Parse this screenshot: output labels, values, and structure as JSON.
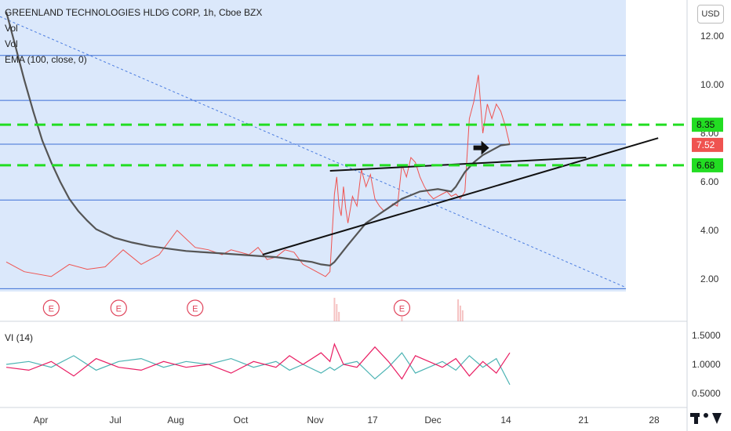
{
  "legend": {
    "title": "GREENLAND TECHNOLOGIES HLDG CORP, 1h, Cboe BZX",
    "vol1": "Vol",
    "vol2": "Vol",
    "ema": "EMA (100, close, 0)"
  },
  "vi_legend": "VI (14)",
  "currency_button": "USD",
  "colors": {
    "background_band": "#dbe8fb",
    "horizontal_line": "#3d6fd6",
    "dashed_level": "#22dd22",
    "price_line": "#ef5350",
    "ema_line": "#555555",
    "trend_line": "#111111",
    "diagonal_dotted": "#4a7ce0",
    "vi_plus": "#4bb3b3",
    "vi_minus": "#e91e63",
    "earnings_marker": "#e0455c"
  },
  "chart_data": {
    "type": "line",
    "price_axis": {
      "ticks": [
        "12.00",
        "10.00",
        "8.00",
        "6.00",
        "4.00",
        "2.00"
      ],
      "range": [
        0.5,
        13.2
      ]
    },
    "time_axis": {
      "ticks": [
        "Apr",
        "Jul",
        "Aug",
        "Oct",
        "Nov",
        "17",
        "Dec",
        "14",
        "21",
        "28"
      ]
    },
    "price_labels": [
      {
        "label": "8.35",
        "value": 8.35,
        "kind": "level"
      },
      {
        "label": "7.52",
        "value": 7.52,
        "kind": "last"
      },
      {
        "label": "6.68",
        "value": 6.68,
        "kind": "level"
      }
    ],
    "horizontal_levels": [
      11.2,
      9.35,
      7.55,
      5.25,
      1.6
    ],
    "dashed_levels": [
      8.35,
      6.68
    ],
    "series": [
      {
        "role": "close",
        "x": [
          0,
          4,
          10,
          14,
          18,
          22,
          26,
          30,
          34,
          38,
          42,
          45,
          48,
          50,
          52,
          54,
          56,
          58,
          60,
          62,
          64,
          66,
          68,
          70,
          71,
          72,
          73,
          73.5,
          74,
          74.5,
          75,
          75.5,
          76,
          77,
          78,
          79,
          80,
          81,
          82,
          83,
          84,
          85,
          86,
          87,
          88,
          89,
          90,
          91,
          92,
          93,
          94,
          95,
          96,
          97,
          98,
          99,
          100,
          101,
          102,
          103,
          104,
          105,
          106,
          107,
          108,
          109,
          110,
          111,
          112
        ],
        "values": [
          2.7,
          2.3,
          2.1,
          2.6,
          2.4,
          2.5,
          3.2,
          2.6,
          3.0,
          4.0,
          3.3,
          3.2,
          3.0,
          3.2,
          3.1,
          3.0,
          3.3,
          2.8,
          2.9,
          3.2,
          3.1,
          2.6,
          2.4,
          2.2,
          2.1,
          2.3,
          5.5,
          6.2,
          5.0,
          4.6,
          5.8,
          4.9,
          4.3,
          5.4,
          5.0,
          6.5,
          5.8,
          6.3,
          5.3,
          5.0,
          4.8,
          4.9,
          5.1,
          5.0,
          6.7,
          6.2,
          7.0,
          6.8,
          6.2,
          5.8,
          5.5,
          5.3,
          5.4,
          5.5,
          5.6,
          5.4,
          5.5,
          5.3,
          5.6,
          8.6,
          9.3,
          10.4,
          8.0,
          9.2,
          8.6,
          9.2,
          8.9,
          8.3,
          7.52
        ]
      },
      {
        "role": "ema_100",
        "x": [
          0,
          2,
          4,
          6,
          8,
          10,
          12,
          14,
          16,
          18,
          20,
          24,
          28,
          32,
          36,
          40,
          44,
          48,
          52,
          56,
          60,
          64,
          68,
          70,
          72,
          73,
          76,
          80,
          84,
          88,
          92,
          96,
          99,
          100,
          102,
          104,
          106,
          108,
          110,
          112
        ],
        "values": [
          13.0,
          11.6,
          10.2,
          8.9,
          7.7,
          6.8,
          6.0,
          5.3,
          4.8,
          4.4,
          4.05,
          3.7,
          3.5,
          3.35,
          3.25,
          3.15,
          3.1,
          3.05,
          3.0,
          2.95,
          2.9,
          2.8,
          2.7,
          2.6,
          2.55,
          2.7,
          3.4,
          4.3,
          4.8,
          5.3,
          5.6,
          5.7,
          5.6,
          5.8,
          6.4,
          6.8,
          7.1,
          7.3,
          7.5,
          7.55
        ]
      }
    ],
    "trend_lines": [
      {
        "x": [
          72,
          129
        ],
        "values": [
          6.45,
          7.0
        ]
      },
      {
        "x": [
          57,
          145
        ],
        "values": [
          3.0,
          7.8
        ]
      }
    ],
    "diagonal_line": {
      "x": [
        0,
        138
      ],
      "values": [
        12.8,
        1.65
      ]
    },
    "earnings_markers": [
      {
        "label": "E",
        "x": 10
      },
      {
        "label": "E",
        "x": 25
      },
      {
        "label": "E",
        "x": 42
      },
      {
        "label": "E",
        "x": 88
      }
    ],
    "arrow_marker": {
      "x": 106,
      "value": 7.4
    },
    "vi_panel": {
      "title": "VI (14)",
      "ticks": [
        "1.5000",
        "1.0000",
        "0.5000"
      ],
      "range": [
        0.3,
        1.7
      ],
      "series": [
        {
          "role": "vi_plus",
          "x": [
            0,
            5,
            10,
            15,
            20,
            25,
            30,
            35,
            40,
            45,
            50,
            55,
            60,
            63,
            66,
            70,
            72,
            73,
            75,
            78,
            82,
            85,
            88,
            91,
            94,
            97,
            100,
            103,
            106,
            109,
            112
          ],
          "values": [
            1.0,
            1.05,
            0.95,
            1.15,
            0.9,
            1.05,
            1.1,
            0.95,
            1.05,
            1.0,
            1.1,
            0.95,
            1.05,
            0.9,
            1.0,
            0.85,
            0.95,
            0.9,
            1.0,
            1.05,
            0.75,
            0.95,
            1.2,
            0.85,
            0.95,
            1.05,
            0.9,
            1.15,
            0.95,
            1.1,
            0.65
          ]
        },
        {
          "role": "vi_minus",
          "x": [
            0,
            5,
            10,
            15,
            20,
            25,
            30,
            35,
            40,
            45,
            50,
            55,
            60,
            63,
            66,
            70,
            72,
            73,
            75,
            78,
            82,
            85,
            88,
            91,
            94,
            97,
            100,
            103,
            106,
            109,
            112
          ],
          "values": [
            0.95,
            0.9,
            1.05,
            0.8,
            1.1,
            0.95,
            0.9,
            1.05,
            0.95,
            1.0,
            0.85,
            1.05,
            0.95,
            1.15,
            1.0,
            1.2,
            1.05,
            1.35,
            1.0,
            0.95,
            1.3,
            1.05,
            0.75,
            1.15,
            1.05,
            0.95,
            1.1,
            0.8,
            1.05,
            0.85,
            1.2
          ]
        }
      ]
    }
  }
}
